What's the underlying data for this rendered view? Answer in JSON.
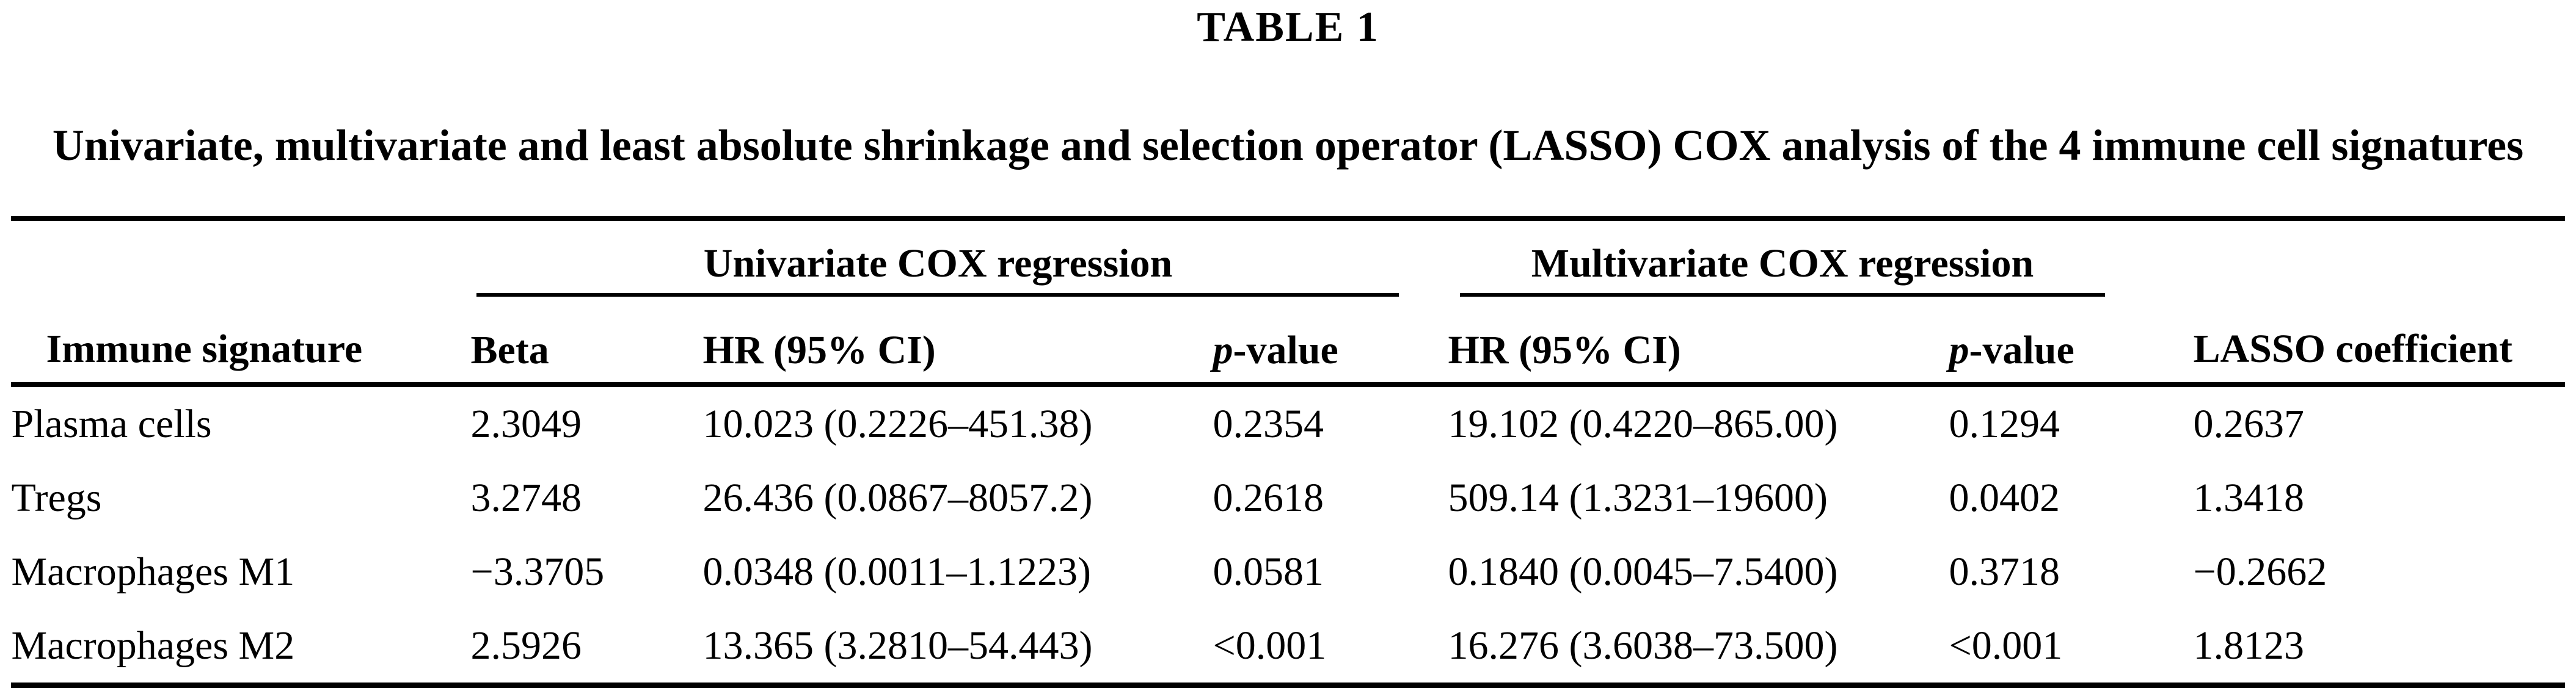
{
  "table_label": "TABLE 1",
  "caption": "Univariate, multivariate and least absolute shrinkage and selection operator (LASSO) COX analysis of the 4 immune cell signatures",
  "table": {
    "col_headers": {
      "immune_signature": "Immune signature",
      "univariate_group": "Univariate COX regression",
      "multivariate_group": "Multivariate COX regression",
      "lasso": "LASSO coefficient",
      "beta": "Beta",
      "hr_uni": "HR (95% CI)",
      "hr_multi": "HR (95% CI)",
      "p_prefix": "p",
      "p_suffix": "-value"
    },
    "rows": [
      {
        "signature": "Plasma cells",
        "beta": "2.3049",
        "hr_uni": "10.023 (0.2226–451.38)",
        "p_uni": "0.2354",
        "hr_multi": "19.102 (0.4220–865.00)",
        "p_multi": "0.1294",
        "lasso": "0.2637"
      },
      {
        "signature": "Tregs",
        "beta": "3.2748",
        "hr_uni": "26.436 (0.0867–8057.2)",
        "p_uni": "0.2618",
        "hr_multi": "509.14 (1.3231–19600)",
        "p_multi": "0.0402",
        "lasso": "1.3418"
      },
      {
        "signature": "Macrophages M1",
        "beta": "−3.3705",
        "hr_uni": "0.0348 (0.0011–1.1223)",
        "p_uni": "0.0581",
        "hr_multi": "0.1840 (0.0045–7.5400)",
        "p_multi": "0.3718",
        "lasso": "−0.2662"
      },
      {
        "signature": "Macrophages M2",
        "beta": "2.5926",
        "hr_uni": "13.365 (3.2810–54.443)",
        "p_uni": "<0.001",
        "hr_multi": "16.276 (3.6038–73.500)",
        "p_multi": "<0.001",
        "lasso": "1.8123"
      }
    ]
  }
}
